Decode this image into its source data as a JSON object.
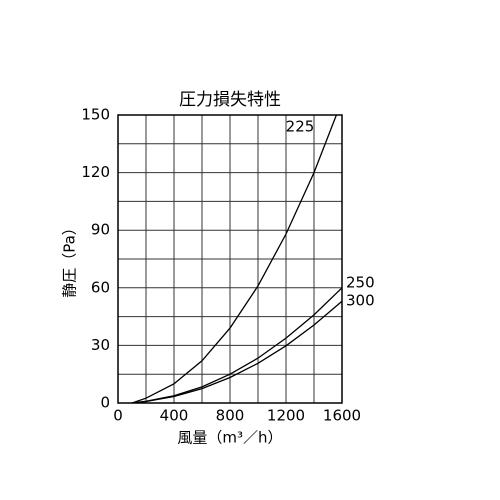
{
  "chart_data": {
    "type": "line",
    "title": "圧力損失特性",
    "x_label": "風量（m³／h）",
    "y_label": "静圧（Pa）",
    "series": [
      {
        "name": "225",
        "color": "#000000",
        "x": [
          100,
          200,
          400,
          600,
          800,
          1000,
          1200,
          1400,
          1560
        ],
        "values": [
          0,
          2.5,
          10,
          22,
          39,
          61,
          88,
          120,
          150
        ]
      },
      {
        "name": "250",
        "color": "#000000",
        "x": [
          100,
          200,
          400,
          600,
          800,
          1000,
          1200,
          1400,
          1600
        ],
        "values": [
          0,
          0.9,
          3.8,
          8.4,
          15,
          23.4,
          33.8,
          45.9,
          60
        ]
      },
      {
        "name": "300",
        "color": "#000000",
        "x": [
          100,
          200,
          400,
          600,
          800,
          1000,
          1200,
          1400,
          1600
        ],
        "values": [
          0,
          0.8,
          3.4,
          7.5,
          13.3,
          20.7,
          29.8,
          40.6,
          53
        ]
      }
    ],
    "xlim": [
      0,
      1600
    ],
    "xticks": [
      0,
      400,
      800,
      1200,
      1600
    ],
    "ylim": [
      0,
      150
    ],
    "yticks": [
      0,
      30,
      60,
      90,
      120,
      150
    ],
    "grid": true
  }
}
